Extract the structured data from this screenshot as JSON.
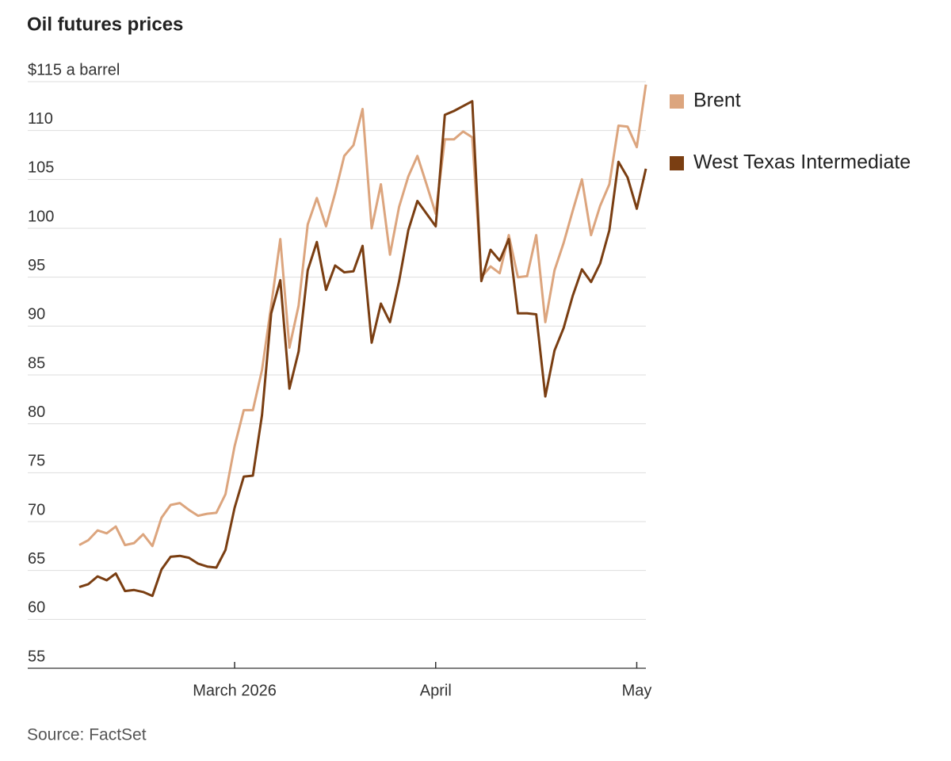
{
  "chart_data": {
    "type": "line",
    "title": "Oil futures prices",
    "source": "Source: FactSet",
    "categories": [
      null,
      null,
      null,
      null,
      null,
      null,
      null,
      null,
      null,
      null,
      null,
      null,
      null,
      null,
      null,
      null,
      null,
      "March 2026",
      null,
      null,
      null,
      null,
      null,
      null,
      null,
      null,
      null,
      null,
      null,
      null,
      null,
      null,
      null,
      null,
      null,
      null,
      null,
      null,
      null,
      "April",
      null,
      null,
      null,
      null,
      null,
      null,
      null,
      null,
      null,
      null,
      null,
      null,
      null,
      null,
      null,
      null,
      null,
      null,
      null,
      null,
      null,
      "May",
      null
    ],
    "series": [
      {
        "name": "Brent",
        "color": "#dca57e",
        "values": [
          67.6,
          68.1,
          69.1,
          68.8,
          69.5,
          67.6,
          67.8,
          68.7,
          67.5,
          70.4,
          71.7,
          71.9,
          71.2,
          70.6,
          70.8,
          70.9,
          72.8,
          77.7,
          81.4,
          81.4,
          85.5,
          92.1,
          98.9,
          87.8,
          92.1,
          100.4,
          103.1,
          100.2,
          103.6,
          107.4,
          108.5,
          112.2,
          100.0,
          104.5,
          97.3,
          102.2,
          105.3,
          107.4,
          104.5,
          101.5,
          109.1,
          109.1,
          109.9,
          109.3,
          95.0,
          96.1,
          95.4,
          99.3,
          95.0,
          95.1,
          99.3,
          90.4,
          95.7,
          98.5,
          101.8,
          105.0,
          99.3,
          102.3,
          104.5,
          110.5,
          110.4,
          108.3,
          114.7
        ]
      },
      {
        "name": "West Texas Intermediate",
        "color": "#7a3e12",
        "values": [
          63.3,
          63.6,
          64.4,
          64.0,
          64.7,
          62.9,
          63.0,
          62.8,
          62.4,
          65.1,
          66.4,
          66.5,
          66.3,
          65.7,
          65.4,
          65.3,
          67.1,
          71.4,
          74.6,
          74.7,
          80.9,
          91.3,
          94.7,
          83.6,
          87.4,
          95.7,
          98.6,
          93.7,
          96.2,
          95.5,
          95.6,
          98.2,
          88.3,
          92.3,
          90.4,
          94.6,
          99.8,
          102.8,
          101.5,
          100.2,
          111.6,
          112.0,
          112.5,
          113.0,
          94.6,
          97.8,
          96.7,
          98.9,
          91.3,
          91.3,
          91.2,
          82.8,
          87.5,
          89.8,
          93.1,
          95.8,
          94.5,
          96.4,
          99.8,
          106.8,
          105.2,
          102.0,
          106.1
        ]
      }
    ],
    "ylim": [
      55,
      115
    ],
    "yticks": [
      55,
      60,
      65,
      70,
      75,
      80,
      85,
      90,
      95,
      100,
      105,
      110,
      {
        "value": 115,
        "label": "$115 a barrel"
      }
    ],
    "grid": true,
    "legend": "right"
  }
}
